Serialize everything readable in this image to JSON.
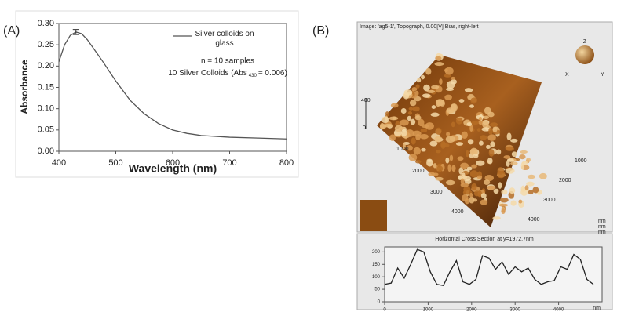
{
  "panel_labels": [
    "(A)",
    "(B)"
  ],
  "chart_data": [
    {
      "type": "line",
      "xlabel": "Wavelength (nm)",
      "ylabel": "Absorbance",
      "xlim": [
        400,
        800
      ],
      "xticks": [
        400,
        500,
        600,
        700,
        800
      ],
      "ylim": [
        0,
        0.3
      ],
      "yticks": [
        {
          "value": 0,
          "label": "0.00"
        },
        {
          "value": 0.05,
          "label": "0.05"
        },
        {
          "value": 0.1,
          "label": "0.10"
        },
        {
          "value": 0.15,
          "label": "0.15"
        },
        {
          "value": 0.2,
          "label": "0.20"
        },
        {
          "value": 0.25,
          "label": "0.25"
        },
        {
          "value": 0.3,
          "label": "0.30"
        }
      ],
      "x": [
        400,
        410,
        420,
        430,
        440,
        450,
        475,
        500,
        525,
        550,
        575,
        600,
        625,
        650,
        700,
        750,
        800
      ],
      "series": [
        {
          "name": "Silver colloids on glass",
          "color": "#555555",
          "values": [
            0.21,
            0.25,
            0.272,
            0.28,
            0.276,
            0.262,
            0.215,
            0.165,
            0.12,
            0.088,
            0.065,
            0.05,
            0.042,
            0.037,
            0.033,
            0.031,
            0.029
          ]
        }
      ],
      "error_bar": {
        "x": 430,
        "value": 0.28,
        "error": 0.006
      },
      "annotations": [
        "n = 10 samples"
      ],
      "annotation_parts": [
        "10 Silver Colloids (Abs",
        "430",
        "= 0.006)"
      ]
    },
    {
      "type": "line",
      "title": "Horizontal Cross Section at y=1972.7nm",
      "xlabel": "nm",
      "xlim": [
        0,
        5000
      ],
      "xticks": [
        0,
        1000,
        2000,
        3000,
        4000
      ],
      "ylim": [
        0,
        220
      ],
      "yticks": [
        0,
        50,
        100,
        150,
        200
      ],
      "x": [
        0,
        150,
        300,
        450,
        600,
        750,
        900,
        1050,
        1200,
        1350,
        1500,
        1650,
        1800,
        1950,
        2100,
        2250,
        2400,
        2550,
        2700,
        2850,
        3000,
        3150,
        3300,
        3450,
        3600,
        3750,
        3900,
        4050,
        4200,
        4350,
        4500,
        4650,
        4800
      ],
      "series": [
        {
          "name": "Horizontal Cross Section",
          "color": "#222222",
          "values": [
            70,
            75,
            135,
            95,
            150,
            210,
            200,
            120,
            70,
            65,
            120,
            165,
            80,
            70,
            90,
            185,
            175,
            130,
            160,
            110,
            140,
            120,
            135,
            90,
            70,
            80,
            85,
            140,
            130,
            190,
            170,
            90,
            70
          ]
        }
      ]
    }
  ],
  "afm": {
    "caption": "Image: 'ag5-1', Topograph, 0.00[V] Bias, right-left",
    "z_labels": [
      "400",
      "0"
    ],
    "right_labels": [
      "1000",
      "2000",
      "3000",
      "4000"
    ],
    "left_labels": [
      "1000",
      "2000",
      "3000",
      "4000"
    ],
    "orient_labels": [
      "Z",
      "X",
      "Y"
    ],
    "unit_labels": [
      "nm",
      "nm",
      "nm"
    ]
  }
}
